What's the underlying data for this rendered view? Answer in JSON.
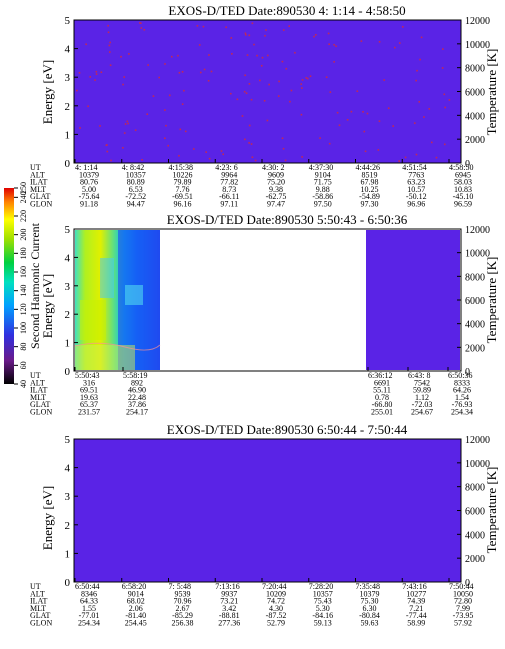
{
  "colors": {
    "background": "#5a23e6",
    "speckle": "#c0285a",
    "axis": "#000000"
  },
  "colorbar": {
    "label": "Second Harmonic Current",
    "ticks": [
      "40",
      "60",
      "80",
      "100",
      "120",
      "140",
      "160",
      "180",
      "200",
      "220",
      "240",
      "250"
    ]
  },
  "panels": [
    {
      "title": "EXOS-D/TED   Date:890530   4: 1:14 - 4:58:50",
      "ylabel": "Energy [eV]",
      "y2label": "Temperature [K]",
      "yticks": [
        "0",
        "1",
        "2",
        "3",
        "4",
        "5"
      ],
      "y2ticks": [
        "0",
        "2000",
        "4000",
        "6000",
        "8000",
        "10000",
        "12000"
      ],
      "row_labels": [
        "UT",
        "ALT",
        "ILAT",
        "MLT",
        "GLAT",
        "GLON"
      ],
      "columns": [
        [
          "4: 1:14",
          "10379",
          "80.76",
          "5.00",
          "-75.64",
          "91.18"
        ],
        [
          "4: 8:42",
          "10357",
          "80.89",
          "6.53",
          "-72.52",
          "94.47"
        ],
        [
          "4:15:38",
          "10226",
          "79.89",
          "7.76",
          "-69.51",
          "96.16"
        ],
        [
          "4:23: 6",
          "9964",
          "77.82",
          "8.73",
          "-66.11",
          "97.11"
        ],
        [
          "4:30: 2",
          "9609",
          "75.20",
          "9.38",
          "-62.75",
          "97.47"
        ],
        [
          "4:37:30",
          "9104",
          "71.75",
          "9.88",
          "-58.86",
          "97.50"
        ],
        [
          "4:44:26",
          "8519",
          "67.98",
          "10.25",
          "-54.89",
          "97.30"
        ],
        [
          "4:51:54",
          "7763",
          "63.23",
          "10.57",
          "-50.12",
          "96.96"
        ],
        [
          "4:58:50",
          "6945",
          "58.03",
          "10.83",
          "-45.10",
          "96.59"
        ]
      ]
    },
    {
      "title": "EXOS-D/TED   Date:890530   5:50:43 - 6:50:36",
      "ylabel": "Energy [eV]",
      "y2label": "Temperature [K]",
      "yticks": [
        "0",
        "1",
        "2",
        "3",
        "4",
        "5"
      ],
      "y2ticks": [
        "0",
        "2000",
        "4000",
        "6000",
        "8000",
        "10000",
        "12000"
      ],
      "row_labels": [
        "UT",
        "ALT",
        "ILAT",
        "MLT",
        "GLAT",
        "GLON"
      ],
      "columns": [
        [
          "5:50:43",
          "316",
          "69.51",
          "19.63",
          "65.37",
          "231.57"
        ],
        [
          "5:58:19",
          "892",
          "46.90",
          "22.48",
          "37.86",
          "254.17"
        ],
        [
          "6:36:12",
          "6691",
          "55.11",
          "0.78",
          "-66.80",
          "255.01"
        ],
        [
          "6:43: 8",
          "7542",
          "59.89",
          "1.12",
          "-72.03",
          "254.67"
        ],
        [
          "6:50:36",
          "8333",
          "64.26",
          "1.54",
          "-76.93",
          "254.34"
        ]
      ]
    },
    {
      "title": "EXOS-D/TED   Date:890530   6:50:44 - 7:50:44",
      "ylabel": "Energy [eV]",
      "y2label": "Temperature [K]",
      "yticks": [
        "0",
        "1",
        "2",
        "3",
        "4",
        "5"
      ],
      "y2ticks": [
        "0",
        "2000",
        "4000",
        "6000",
        "8000",
        "10000",
        "12000"
      ],
      "row_labels": [
        "UT",
        "ALT",
        "ILAT",
        "MLT",
        "GLAT",
        "GLON"
      ],
      "columns": [
        [
          "6:50:44",
          "8346",
          "64.33",
          "1.55",
          "-77.01",
          "254.34"
        ],
        [
          "6:58:20",
          "9014",
          "68.02",
          "2.06",
          "-81.40",
          "254.45"
        ],
        [
          "7: 5:48",
          "9539",
          "70.96",
          "2.67",
          "-85.29",
          "256.38"
        ],
        [
          "7:13:16",
          "9937",
          "73.21",
          "3.42",
          "-88.81",
          "277.36"
        ],
        [
          "7:20:44",
          "10209",
          "74.72",
          "4.30",
          "-87.52",
          "52.79"
        ],
        [
          "7:28:20",
          "10357",
          "75.43",
          "5.30",
          "-84.16",
          "59.13"
        ],
        [
          "7:35:48",
          "10379",
          "75.30",
          "6.30",
          "-80.84",
          "59.63"
        ],
        [
          "7:43:16",
          "10277",
          "74.39",
          "7.21",
          "-77.44",
          "58.99"
        ],
        [
          "7:50:44",
          "10050",
          "72.80",
          "7.99",
          "-73.95",
          "57.92"
        ]
      ]
    }
  ],
  "chart_data": [
    {
      "type": "heatmap",
      "title": "EXOS-D/TED   Date:890530   4: 1:14 - 4:58:50",
      "xlabel": "UT",
      "ylabel": "Energy [eV]",
      "y2label": "Temperature [K]",
      "ylim": [
        0,
        5
      ],
      "y2lim": [
        0,
        12000
      ],
      "x": [
        "4: 1:14",
        "4: 8:42",
        "4:15:38",
        "4:23: 6",
        "4:30: 2",
        "4:37:30",
        "4:44:26",
        "4:51:54",
        "4:58:50"
      ],
      "data_segments": [
        [
          0,
          1
        ]
      ],
      "fill": "background",
      "grid": false
    },
    {
      "type": "heatmap",
      "title": "EXOS-D/TED   Date:890530   5:50:43 - 6:50:36",
      "xlabel": "UT",
      "ylabel": "Energy [eV]",
      "y2label": "Temperature [K]",
      "ylim": [
        0,
        5
      ],
      "y2lim": [
        0,
        12000
      ],
      "x": [
        "5:50:43",
        "5:58:19",
        "6:36:12",
        "6:43: 8",
        "6:50:36"
      ],
      "data_segments": [
        [
          0,
          0.23
        ],
        [
          0.74,
          1
        ]
      ],
      "colorbar_range": [
        40,
        250
      ],
      "grid": false
    },
    {
      "type": "heatmap",
      "title": "EXOS-D/TED   Date:890530   6:50:44 - 7:50:44",
      "xlabel": "UT",
      "ylabel": "Energy [eV]",
      "y2label": "Temperature [K]",
      "ylim": [
        0,
        5
      ],
      "y2lim": [
        0,
        12000
      ],
      "x": [
        "6:50:44",
        "6:58:20",
        "7: 5:48",
        "7:13:16",
        "7:20:44",
        "7:28:20",
        "7:35:48",
        "7:43:16",
        "7:50:44"
      ],
      "data_segments": [
        [
          0,
          1
        ]
      ],
      "fill": "background",
      "grid": false
    }
  ]
}
